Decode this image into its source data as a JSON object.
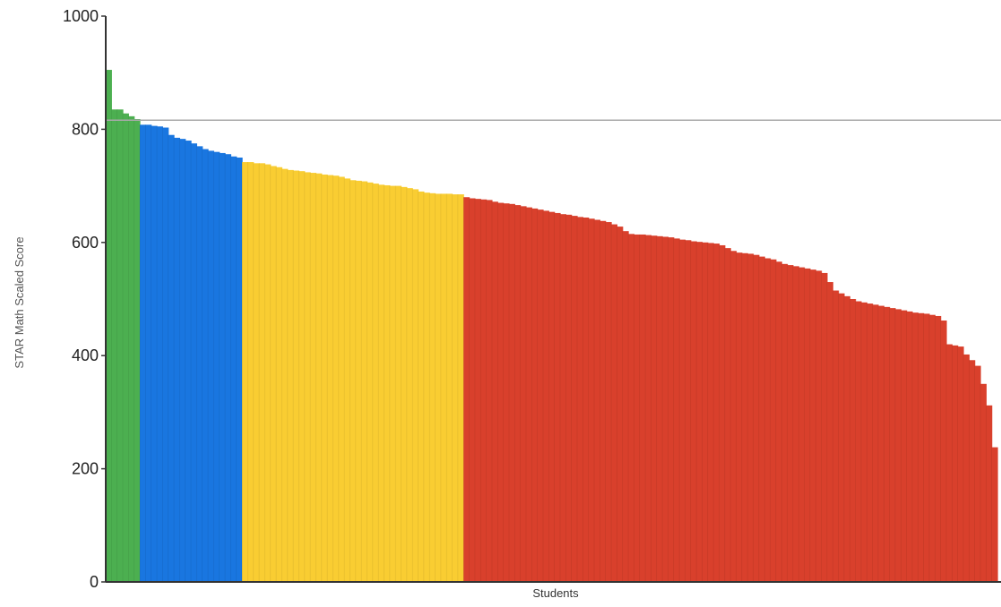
{
  "chart_data": {
    "type": "bar",
    "title": "",
    "xlabel": "Students",
    "ylabel": "STAR Math Scaled Score",
    "ylim": [
      0,
      1000
    ],
    "yticks": [
      0,
      200,
      400,
      600,
      800,
      1000
    ],
    "ytick_labels": [
      "0",
      "200",
      "400",
      "600",
      "800",
      "1000"
    ],
    "grid": false,
    "legend": "none",
    "reference_line": 816,
    "series": [
      {
        "color": "#4caf50",
        "values": [
          905,
          835,
          835,
          828,
          823,
          818
        ]
      },
      {
        "color": "#1976e0",
        "values": [
          808,
          808,
          806,
          805,
          803,
          790,
          785,
          783,
          780,
          775,
          770,
          765,
          762,
          760,
          758,
          756,
          752,
          750
        ]
      },
      {
        "color": "#f9cd32",
        "values": [
          742,
          742,
          740,
          740,
          738,
          735,
          733,
          730,
          728,
          727,
          726,
          724,
          723,
          722,
          720,
          719,
          718,
          716,
          713,
          710,
          709,
          708,
          706,
          704,
          702,
          701,
          700,
          700,
          698,
          696,
          694,
          690,
          688,
          687,
          686,
          686,
          686,
          685,
          685
        ]
      },
      {
        "color": "#d9402c",
        "values": [
          680,
          678,
          677,
          676,
          675,
          672,
          670,
          669,
          668,
          666,
          664,
          662,
          660,
          658,
          656,
          654,
          652,
          650,
          649,
          647,
          645,
          644,
          642,
          640,
          638,
          636,
          632,
          628,
          620,
          615,
          614,
          614,
          613,
          612,
          611,
          610,
          609,
          607,
          605,
          604,
          602,
          601,
          600,
          599,
          598,
          595,
          590,
          585,
          582,
          581,
          580,
          578,
          575,
          572,
          570,
          566,
          562,
          560,
          558,
          556,
          554,
          552,
          550,
          546,
          530,
          515,
          510,
          505,
          500,
          496,
          494,
          492,
          490,
          488,
          486,
          484,
          482,
          480,
          478,
          476,
          475,
          474,
          472,
          470,
          462,
          420,
          418,
          416,
          402,
          392,
          382,
          350,
          312,
          238
        ]
      }
    ]
  }
}
